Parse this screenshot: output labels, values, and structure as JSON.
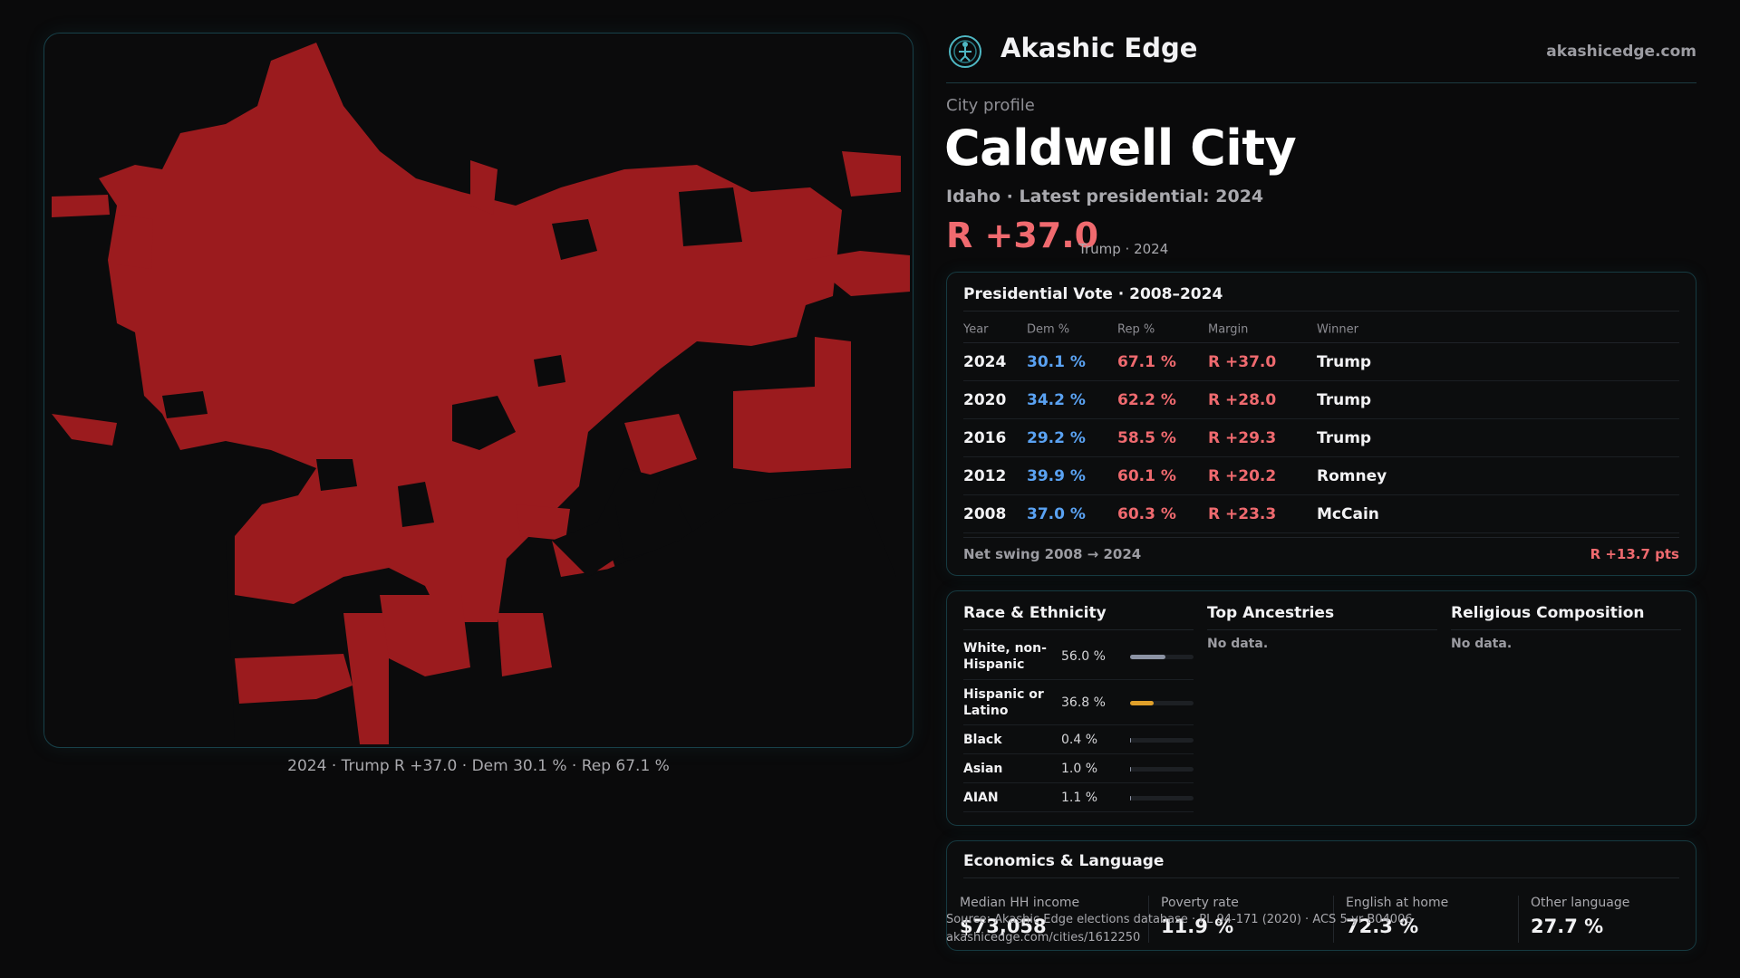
{
  "header": {
    "brand": "Akashic Edge",
    "site": "akashicedge.com"
  },
  "profile": {
    "kicker": "City profile",
    "city": "Caldwell City",
    "subtitle": "Idaho · Latest presidential: 2024",
    "margin": "R +37.0",
    "margin_note": "Trump · 2024"
  },
  "map": {
    "caption": "2024 · Trump R +37.0 · Dem 30.1 % · Rep 67.1 %",
    "fill_color": "#9b1b1e"
  },
  "vote": {
    "title": "Presidential Vote · 2008–2024",
    "headers": {
      "year": "Year",
      "dem": "Dem %",
      "rep": "Rep %",
      "margin": "Margin",
      "winner": "Winner"
    },
    "rows": [
      {
        "year": "2024",
        "dem": "30.1 %",
        "rep": "67.1 %",
        "margin": "R +37.0",
        "winner": "Trump"
      },
      {
        "year": "2020",
        "dem": "34.2 %",
        "rep": "62.2 %",
        "margin": "R +28.0",
        "winner": "Trump"
      },
      {
        "year": "2016",
        "dem": "29.2 %",
        "rep": "58.5 %",
        "margin": "R +29.3",
        "winner": "Trump"
      },
      {
        "year": "2012",
        "dem": "39.9 %",
        "rep": "60.1 %",
        "margin": "R +20.2",
        "winner": "Romney"
      },
      {
        "year": "2008",
        "dem": "37.0 %",
        "rep": "60.3 %",
        "margin": "R +23.3",
        "winner": "McCain"
      }
    ],
    "swing_label": "Net swing 2008 → 2024",
    "swing_value": "R +13.7 pts"
  },
  "demographics": {
    "race_title": "Race & Ethnicity",
    "race": [
      {
        "name": "White, non-Hispanic",
        "value": "56.0 %",
        "fraction": 0.56,
        "color": "#8c93a4"
      },
      {
        "name": "Hispanic or Latino",
        "value": "36.8 %",
        "fraction": 0.368,
        "color": "#e0a02a"
      },
      {
        "name": "Black",
        "value": "0.4 %",
        "fraction": 0.004,
        "color": "#8c93a4"
      },
      {
        "name": "Asian",
        "value": "1.0 %",
        "fraction": 0.01,
        "color": "#8c93a4"
      },
      {
        "name": "AIAN",
        "value": "1.1 %",
        "fraction": 0.011,
        "color": "#8c93a4"
      }
    ],
    "ancestry_title": "Top Ancestries",
    "ancestry_nodata": "No data.",
    "religion_title": "Religious Composition",
    "religion_nodata": "No data."
  },
  "economics": {
    "title": "Economics & Language",
    "stats": [
      {
        "label": "Median HH income",
        "value": "$73,058"
      },
      {
        "label": "Poverty rate",
        "value": "11.9 %"
      },
      {
        "label": "English at home",
        "value": "72.3 %"
      },
      {
        "label": "Other language",
        "value": "27.7 %"
      }
    ]
  },
  "source": {
    "line1": "Source: Akashic Edge elections database · PL 94-171 (2020) · ACS 5-yr B04006",
    "line2": "akashicedge.com/cities/1612250"
  }
}
